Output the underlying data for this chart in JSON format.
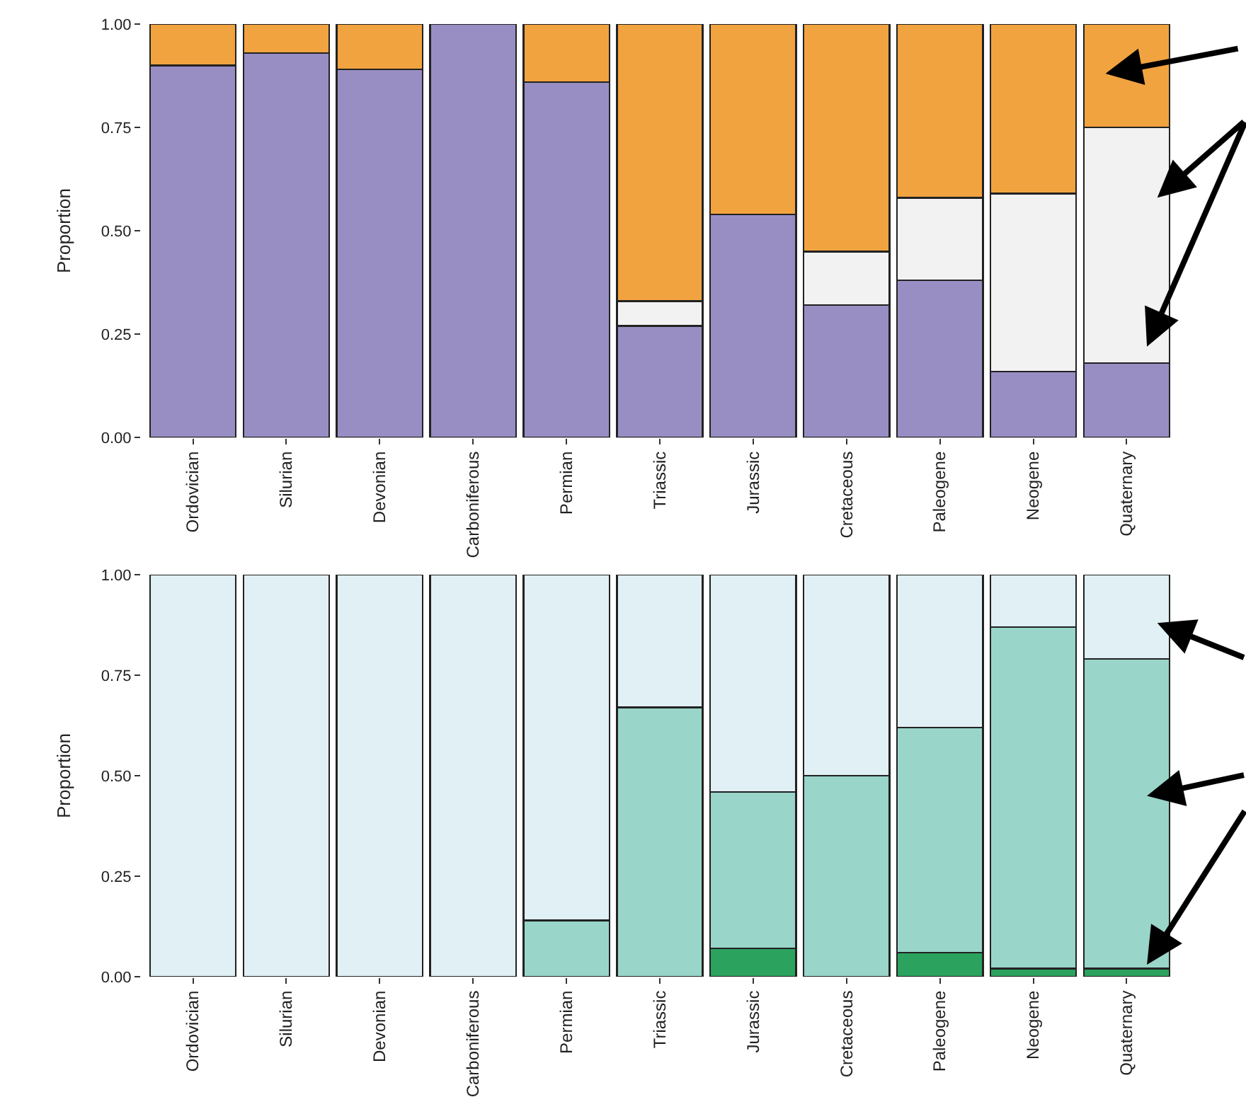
{
  "chart_data": [
    {
      "type": "bar",
      "stacked": true,
      "ylabel": "Proportion",
      "categories": [
        "Ordovician",
        "Silurian",
        "Devonian",
        "Carboniferous",
        "Permian",
        "Triassic",
        "Jurassic",
        "Cretaceous",
        "Paleogene",
        "Neogene",
        "Quaternary"
      ],
      "ylim": [
        0,
        1
      ],
      "yticks": [
        {
          "value": 0,
          "label": "0.00"
        },
        {
          "value": 0.25,
          "label": "0.25"
        },
        {
          "value": 0.5,
          "label": "0.50"
        },
        {
          "value": 0.75,
          "label": "0.75"
        },
        {
          "value": 1,
          "label": "1.00"
        }
      ],
      "series": [
        {
          "color": "#998ec3",
          "values": [
            0.9,
            0.93,
            0.89,
            1.0,
            0.86,
            0.27,
            0.54,
            0.32,
            0.38,
            0.16,
            0.18
          ]
        },
        {
          "color": "#f2f2f2",
          "values": [
            0,
            0,
            0,
            0,
            0,
            0.06,
            0,
            0.13,
            0.2,
            0.43,
            0.57
          ]
        },
        {
          "color": "#f1a340",
          "values": [
            0.1,
            0.07,
            0.11,
            0,
            0.14,
            0.67,
            0.46,
            0.55,
            0.42,
            0.41,
            0.25
          ]
        }
      ]
    },
    {
      "type": "bar",
      "stacked": true,
      "ylabel": "Proportion",
      "categories": [
        "Ordovician",
        "Silurian",
        "Devonian",
        "Carboniferous",
        "Permian",
        "Triassic",
        "Jurassic",
        "Cretaceous",
        "Paleogene",
        "Neogene",
        "Quaternary"
      ],
      "ylim": [
        0,
        1
      ],
      "yticks": [
        {
          "value": 0,
          "label": "0.00"
        },
        {
          "value": 0.25,
          "label": "0.25"
        },
        {
          "value": 0.5,
          "label": "0.50"
        },
        {
          "value": 0.75,
          "label": "0.75"
        },
        {
          "value": 1,
          "label": "1.00"
        }
      ],
      "series": [
        {
          "color": "#2ca25f",
          "values": [
            0,
            0,
            0,
            0,
            0,
            0,
            0.07,
            0,
            0.06,
            0.02,
            0.02
          ]
        },
        {
          "color": "#99d5c9",
          "values": [
            0,
            0,
            0,
            0,
            0.14,
            0.67,
            0.39,
            0.5,
            0.56,
            0.85,
            0.77
          ]
        },
        {
          "color": "#e0f0f4",
          "values": [
            1,
            1,
            1,
            1,
            0.86,
            0.33,
            0.54,
            0.5,
            0.38,
            0.13,
            0.21
          ]
        }
      ]
    }
  ]
}
